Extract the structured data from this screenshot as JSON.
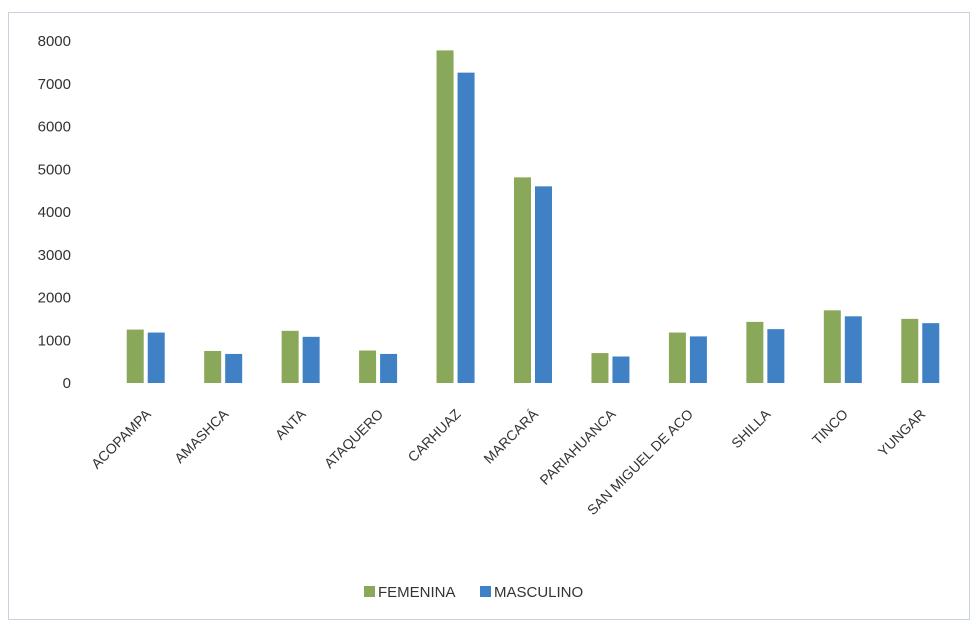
{
  "chart_data": {
    "type": "bar",
    "categories": [
      "ACOPAMPA",
      "AMASHCA",
      "ANTA",
      "ATAQUERO",
      "CARHUAZ",
      "MARCARÁ",
      "PARIAHUANCA",
      "SAN MIGUEL DE ACO",
      "SHILLA",
      "TINCO",
      "YUNGAR"
    ],
    "series": [
      {
        "name": "FEMENINA",
        "color": "#8aa85a",
        "values": [
          1250,
          750,
          1220,
          760,
          7780,
          4810,
          700,
          1180,
          1430,
          1700,
          1500
        ]
      },
      {
        "name": "MASCULINO",
        "color": "#3f81c4",
        "values": [
          1180,
          680,
          1080,
          680,
          7260,
          4600,
          620,
          1090,
          1260,
          1560,
          1400
        ]
      }
    ],
    "yticks": [
      0,
      1000,
      2000,
      3000,
      4000,
      5000,
      6000,
      7000,
      8000
    ],
    "ylim": [
      0,
      8000
    ],
    "grid": false,
    "legend_position": "bottom-center"
  }
}
